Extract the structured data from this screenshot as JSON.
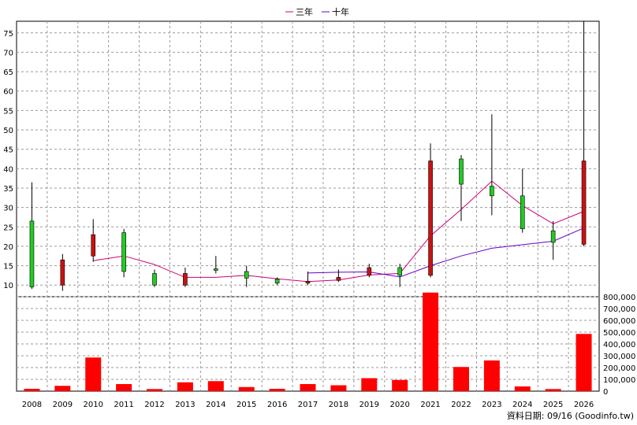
{
  "chart_data": {
    "type": "candlestick",
    "legend": [
      {
        "label": "三年",
        "color": "#cc0077"
      },
      {
        "label": "十年",
        "color": "#6600cc"
      }
    ],
    "footer": "資料日期: 09/16  (Goodinfo.tw)",
    "price_axis": {
      "ticks": [
        "10",
        "15",
        "20",
        "25",
        "30",
        "35",
        "40",
        "45",
        "50",
        "55",
        "60",
        "65",
        "70",
        "75"
      ],
      "range": [
        7,
        78
      ]
    },
    "volume_axis": {
      "ticks": [
        "0",
        "100,000",
        "200,000",
        "300,000",
        "400,000",
        "500,000",
        "600,000",
        "700,000",
        "800,000"
      ],
      "range": [
        0,
        800000
      ]
    },
    "categories": [
      "2008",
      "2009",
      "2010",
      "2011",
      "2012",
      "2013",
      "2014",
      "2015",
      "2016",
      "2017",
      "2018",
      "2019",
      "2020",
      "2021",
      "2022",
      "2023",
      "2024",
      "2025",
      "2026"
    ],
    "candles": [
      {
        "open": 9.5,
        "high": 36.5,
        "low": 9.0,
        "close": 26.5
      },
      {
        "open": 16.5,
        "high": 18.0,
        "low": 8.5,
        "close": 10.0
      },
      {
        "open": 23.0,
        "high": 27.0,
        "low": 16.0,
        "close": 17.5
      },
      {
        "open": 13.5,
        "high": 24.5,
        "low": 12.0,
        "close": 23.5
      },
      {
        "open": 10.0,
        "high": 14.0,
        "low": 9.5,
        "close": 13.0
      },
      {
        "open": 13.0,
        "high": 14.5,
        "low": 9.5,
        "close": 10.0
      },
      {
        "open": 13.8,
        "high": 17.5,
        "low": 13.0,
        "close": 14.2
      },
      {
        "open": 11.8,
        "high": 15.0,
        "low": 9.5,
        "close": 13.5
      },
      {
        "open": 10.5,
        "high": 12.0,
        "low": 10.0,
        "close": 11.5
      },
      {
        "open": 11.0,
        "high": 13.5,
        "low": 10.0,
        "close": 10.5
      },
      {
        "open": 12.0,
        "high": 14.0,
        "low": 10.8,
        "close": 11.2
      },
      {
        "open": 14.5,
        "high": 15.5,
        "low": 12.0,
        "close": 12.5
      },
      {
        "open": 12.5,
        "high": 15.5,
        "low": 9.5,
        "close": 14.5
      },
      {
        "open": 42.0,
        "high": 46.5,
        "low": 12.0,
        "close": 12.5
      },
      {
        "open": 36.0,
        "high": 43.5,
        "low": 26.5,
        "close": 42.5
      },
      {
        "open": 33.0,
        "high": 54.0,
        "low": 28.0,
        "close": 35.5
      },
      {
        "open": 24.5,
        "high": 40.0,
        "low": 23.5,
        "close": 33.0
      },
      {
        "open": 21.0,
        "high": 26.5,
        "low": 16.5,
        "close": 24.0
      },
      {
        "open": 42.0,
        "high": 78.0,
        "low": 20.0,
        "close": 20.5
      }
    ],
    "three_year_ma": [
      null,
      null,
      16.3,
      17.5,
      15.3,
      12.0,
      12.0,
      12.5,
      11.6,
      10.9,
      11.3,
      12.6,
      13.0,
      22.7,
      29.5,
      36.8,
      30.5,
      25.8,
      29.0
    ],
    "ten_year_ma": [
      null,
      null,
      null,
      null,
      null,
      null,
      null,
      null,
      null,
      13.1,
      13.3,
      13.4,
      12.1,
      15.0,
      17.5,
      19.5,
      20.4,
      21.3,
      24.7
    ],
    "volume": [
      20000,
      45000,
      285000,
      60000,
      18000,
      75000,
      85000,
      35000,
      20000,
      60000,
      50000,
      110000,
      95000,
      835000,
      205000,
      260000,
      40000,
      18000,
      485000
    ]
  }
}
